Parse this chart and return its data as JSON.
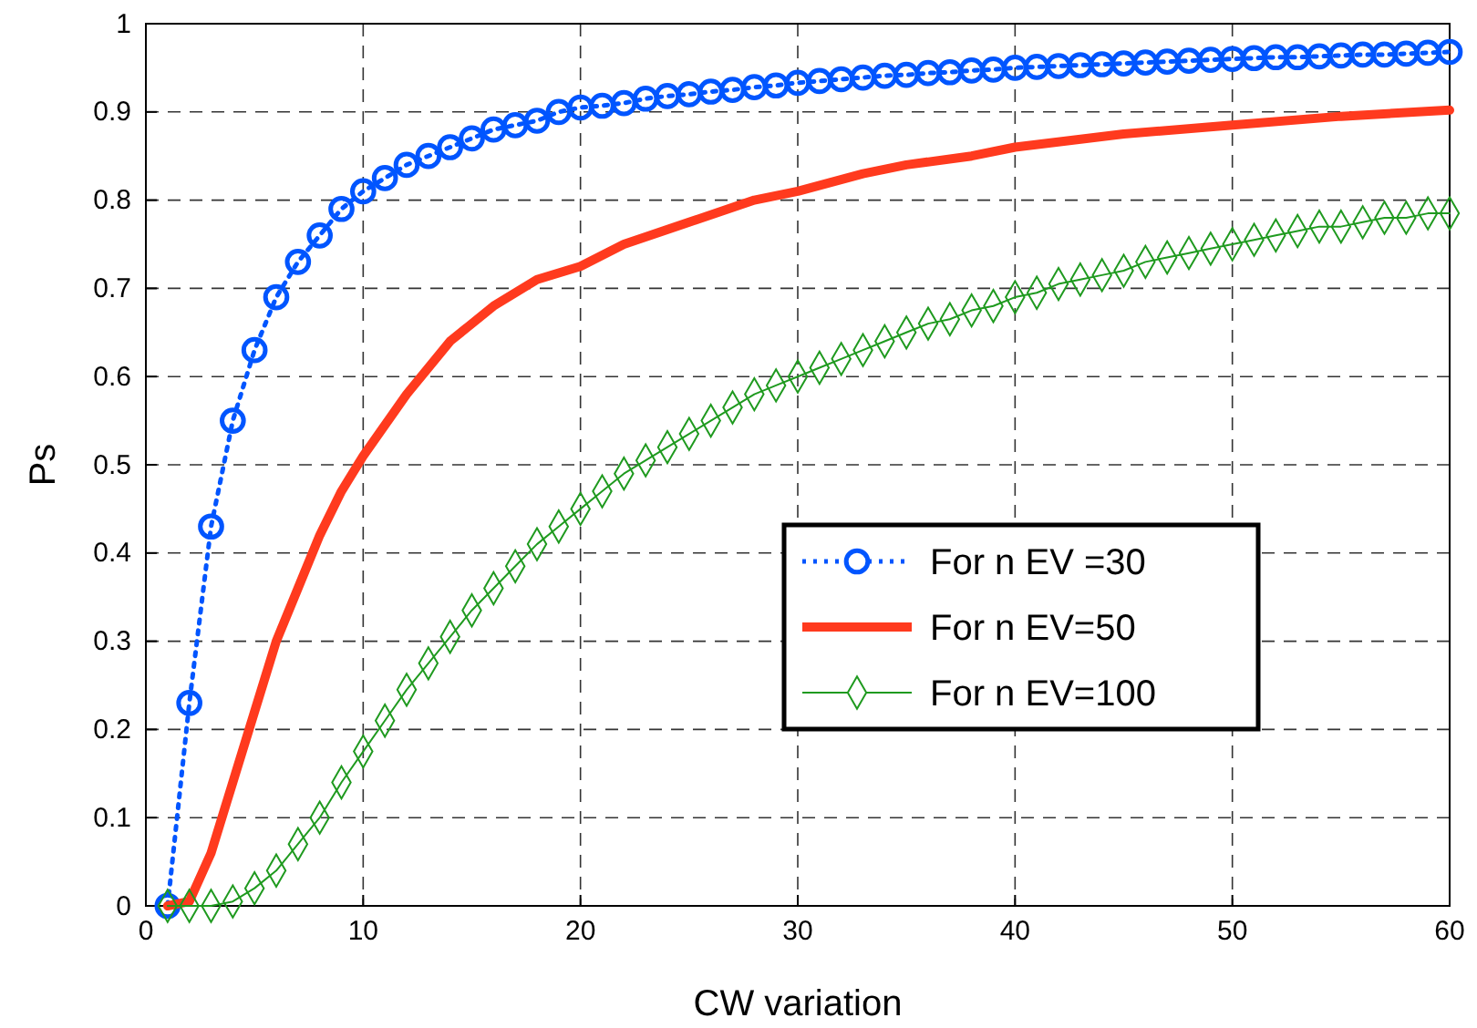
{
  "chart_data": {
    "type": "line",
    "xlabel": "CW variation",
    "ylabel": "Ps",
    "xlim": [
      0,
      60
    ],
    "ylim": [
      0,
      1
    ],
    "xticks": [
      0,
      10,
      20,
      30,
      40,
      50,
      60
    ],
    "yticks": [
      0,
      0.1,
      0.2,
      0.3,
      0.4,
      0.5,
      0.6,
      0.7,
      0.8,
      0.9,
      1
    ],
    "grid": true,
    "legend": "right",
    "series": [
      {
        "name": "For n EV =30",
        "color": "#0055ff",
        "marker": "circle",
        "line_style": "dotted",
        "x": [
          1,
          2,
          3,
          4,
          5,
          6,
          7,
          8,
          9,
          10,
          11,
          12,
          13,
          14,
          15,
          16,
          17,
          18,
          19,
          20,
          21,
          22,
          23,
          24,
          25,
          26,
          27,
          28,
          29,
          30,
          31,
          32,
          33,
          34,
          35,
          36,
          37,
          38,
          39,
          40,
          41,
          42,
          43,
          44,
          45,
          46,
          47,
          48,
          49,
          50,
          51,
          52,
          53,
          54,
          55,
          56,
          57,
          58,
          59,
          60
        ],
        "values": [
          0,
          0.23,
          0.43,
          0.55,
          0.63,
          0.69,
          0.73,
          0.76,
          0.79,
          0.81,
          0.825,
          0.84,
          0.85,
          0.86,
          0.87,
          0.88,
          0.885,
          0.89,
          0.9,
          0.905,
          0.907,
          0.91,
          0.915,
          0.918,
          0.92,
          0.923,
          0.925,
          0.928,
          0.93,
          0.933,
          0.935,
          0.937,
          0.939,
          0.941,
          0.942,
          0.944,
          0.945,
          0.947,
          0.948,
          0.95,
          0.951,
          0.952,
          0.953,
          0.954,
          0.955,
          0.956,
          0.957,
          0.958,
          0.959,
          0.96,
          0.961,
          0.962,
          0.962,
          0.963,
          0.964,
          0.965,
          0.965,
          0.966,
          0.967,
          0.968
        ]
      },
      {
        "name": "For n EV=50",
        "color": "#ff3a1e",
        "marker": "none",
        "line_style": "solid",
        "x": [
          1,
          2,
          3,
          4,
          5,
          6,
          7,
          8,
          9,
          10,
          12,
          14,
          16,
          18,
          20,
          22,
          25,
          28,
          30,
          33,
          35,
          38,
          40,
          45,
          50,
          55,
          60
        ],
        "values": [
          0,
          0.005,
          0.06,
          0.14,
          0.22,
          0.3,
          0.36,
          0.42,
          0.47,
          0.51,
          0.58,
          0.64,
          0.68,
          0.71,
          0.725,
          0.75,
          0.775,
          0.8,
          0.81,
          0.83,
          0.84,
          0.85,
          0.86,
          0.875,
          0.885,
          0.895,
          0.902
        ]
      },
      {
        "name": "For n EV=100",
        "color": "#1f9a1f",
        "marker": "diamond",
        "line_style": "solid",
        "x": [
          1,
          2,
          3,
          4,
          5,
          6,
          7,
          8,
          9,
          10,
          11,
          12,
          13,
          14,
          15,
          16,
          17,
          18,
          19,
          20,
          21,
          22,
          23,
          24,
          25,
          26,
          27,
          28,
          29,
          30,
          31,
          32,
          33,
          34,
          35,
          36,
          37,
          38,
          39,
          40,
          41,
          42,
          43,
          44,
          45,
          46,
          47,
          48,
          49,
          50,
          51,
          52,
          53,
          54,
          55,
          56,
          57,
          58,
          59,
          60
        ],
        "values": [
          0,
          0,
          0,
          0.005,
          0.02,
          0.04,
          0.07,
          0.1,
          0.14,
          0.175,
          0.21,
          0.245,
          0.275,
          0.305,
          0.335,
          0.36,
          0.385,
          0.41,
          0.43,
          0.45,
          0.47,
          0.49,
          0.505,
          0.52,
          0.535,
          0.55,
          0.565,
          0.58,
          0.59,
          0.6,
          0.61,
          0.62,
          0.63,
          0.64,
          0.65,
          0.66,
          0.665,
          0.675,
          0.68,
          0.69,
          0.695,
          0.705,
          0.71,
          0.715,
          0.72,
          0.73,
          0.735,
          0.74,
          0.745,
          0.75,
          0.755,
          0.76,
          0.765,
          0.77,
          0.77,
          0.775,
          0.78,
          0.78,
          0.785,
          0.785
        ]
      }
    ]
  }
}
